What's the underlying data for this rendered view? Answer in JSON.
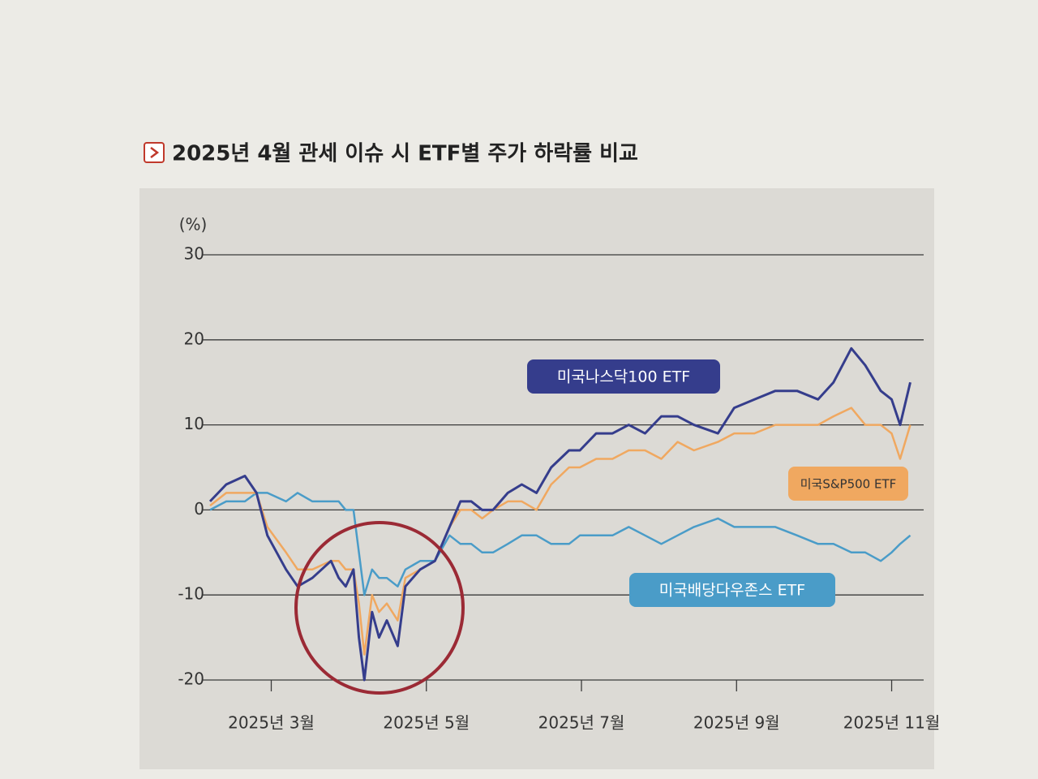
{
  "chart_data": {
    "type": "line",
    "title": "2025년 4월 관세 이슈 시 ETF별 주가 하락률 비교",
    "y_unit": "(%)",
    "x": [
      2.21,
      2.42,
      2.66,
      2.81,
      2.95,
      3.19,
      3.34,
      3.53,
      3.77,
      3.87,
      3.96,
      4.06,
      4.13,
      4.2,
      4.3,
      4.39,
      4.49,
      4.63,
      4.73,
      4.92,
      5.11,
      5.3,
      5.44,
      5.58,
      5.72,
      5.86,
      6.05,
      6.23,
      6.42,
      6.61,
      6.84,
      6.98,
      7.19,
      7.4,
      7.61,
      7.82,
      8.03,
      8.24,
      8.45,
      8.76,
      8.97,
      9.23,
      9.5,
      9.78,
      10.05,
      10.25,
      10.48,
      10.66,
      10.86,
      11.0,
      11.11,
      11.24
    ],
    "xlim": [
      2.2,
      11.35
    ],
    "xticks": [
      {
        "value": 3,
        "label": "2025년 3월"
      },
      {
        "value": 5,
        "label": "2025년 5월"
      },
      {
        "value": 7,
        "label": "2025년 7월"
      },
      {
        "value": 9,
        "label": "2025년 9월"
      },
      {
        "value": 11,
        "label": "2025년 11월"
      }
    ],
    "ylim": [
      -20,
      30
    ],
    "yticks": [
      30,
      20,
      10,
      0,
      -10,
      -20
    ],
    "grid": true,
    "series": [
      {
        "name": "미국나스닥100 ETF",
        "color": "#353d8c",
        "values": [
          1,
          3,
          4,
          2,
          -3,
          -7,
          -9,
          -8,
          -6,
          -8,
          -9,
          -7,
          -15,
          -20,
          -12,
          -15,
          -13,
          -16,
          -9,
          -7,
          -6,
          -2,
          1,
          1,
          0,
          0,
          2,
          3,
          2,
          5,
          7,
          7,
          9,
          9,
          10,
          9,
          11,
          11,
          10,
          9,
          12,
          13,
          14,
          14,
          13,
          15,
          19,
          17,
          14,
          13,
          10,
          15
        ]
      },
      {
        "name": "미국S&P500 ETF",
        "color": "#f0a860",
        "values": [
          0.5,
          2,
          2,
          2,
          -2,
          -5,
          -7,
          -7,
          -6,
          -6,
          -7,
          -7,
          -11,
          -17,
          -10,
          -12,
          -11,
          -13,
          -8,
          -7,
          -6,
          -2,
          0,
          0,
          -1,
          0,
          1,
          1,
          0,
          3,
          5,
          5,
          6,
          6,
          7,
          7,
          6,
          8,
          7,
          8,
          9,
          9,
          10,
          10,
          10,
          11,
          12,
          10,
          10,
          9,
          6,
          10
        ]
      },
      {
        "name": "미국배당다우존스 ETF",
        "color": "#4a9cc8",
        "values": [
          0,
          1,
          1,
          2,
          2,
          1,
          2,
          1,
          1,
          1,
          0,
          0,
          -5,
          -10,
          -7,
          -8,
          -8,
          -9,
          -7,
          -6,
          -6,
          -3,
          -4,
          -4,
          -5,
          -5,
          -4,
          -3,
          -3,
          -4,
          -4,
          -3,
          -3,
          -3,
          -2,
          -3,
          -4,
          -3,
          -2,
          -1,
          -2,
          -2,
          -2,
          -3,
          -4,
          -4,
          -5,
          -5,
          -6,
          -5,
          -4,
          -3
        ]
      }
    ]
  }
}
